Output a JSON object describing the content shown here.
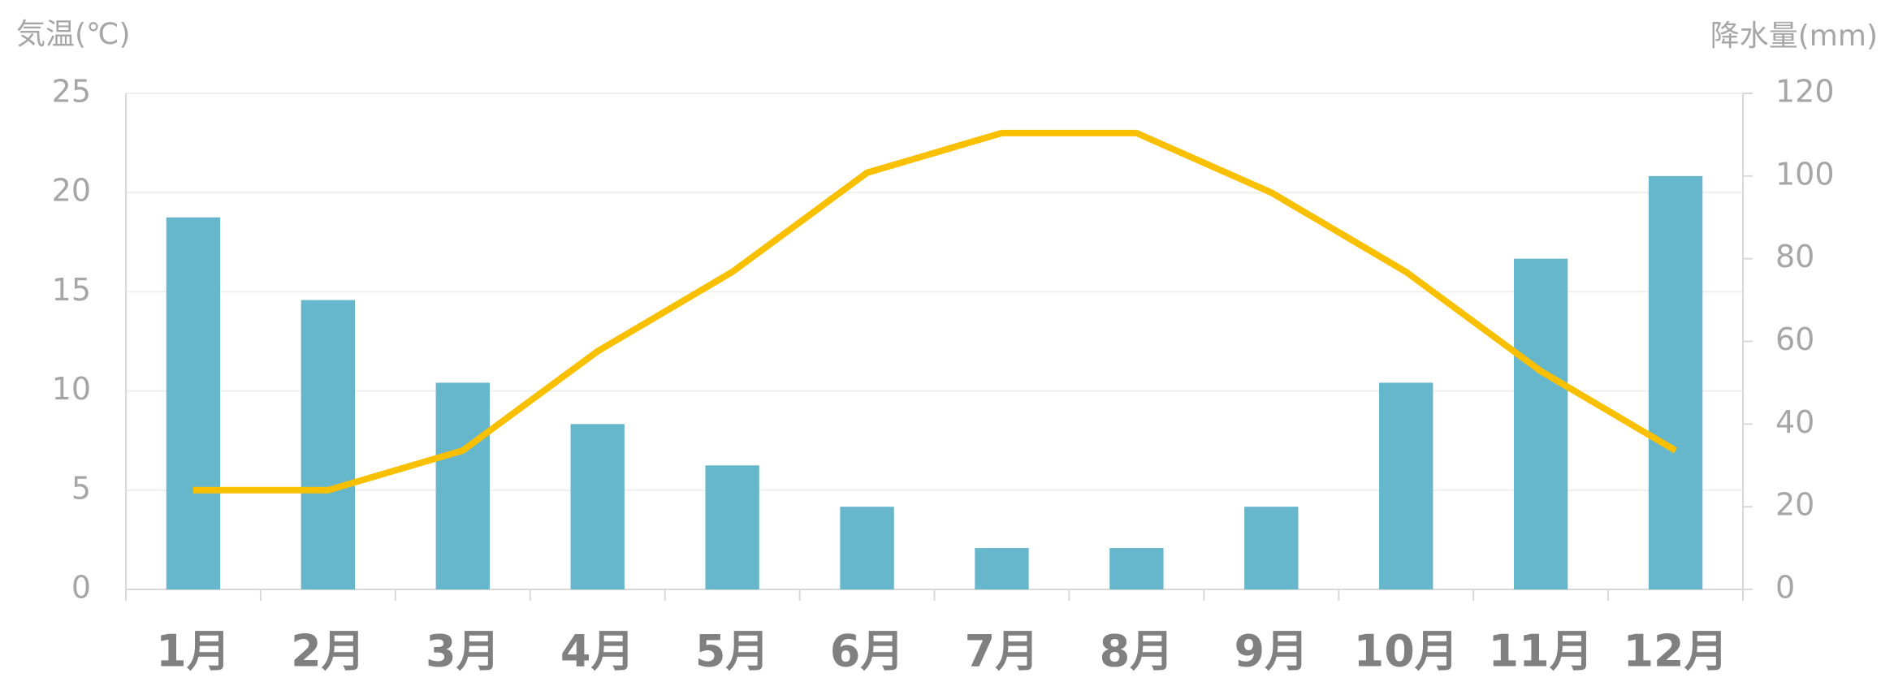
{
  "chart_data": {
    "type": "bar-line",
    "y_label": "気温(℃)",
    "y2_label": "降水量(mm)",
    "categories": [
      "1月",
      "2月",
      "3月",
      "4月",
      "5月",
      "6月",
      "7月",
      "8月",
      "9月",
      "10月",
      "11月",
      "12月"
    ],
    "series": [
      {
        "type": "bar",
        "axis": "y2",
        "color": "#67b7cc",
        "values": [
          90,
          70,
          50,
          40,
          30,
          20,
          10,
          10,
          20,
          50,
          80,
          100
        ]
      },
      {
        "type": "line",
        "axis": "y",
        "color": "#f9c000",
        "values": [
          5,
          5,
          7,
          12,
          16,
          21,
          23,
          23,
          20,
          16,
          11,
          7
        ]
      }
    ],
    "ylim": [
      0,
      25
    ],
    "yticks": [
      0,
      5,
      10,
      15,
      20,
      25
    ],
    "y2lim": [
      0,
      120
    ],
    "y2ticks": [
      0,
      20,
      40,
      60,
      80,
      100,
      120
    ],
    "grid": true
  }
}
